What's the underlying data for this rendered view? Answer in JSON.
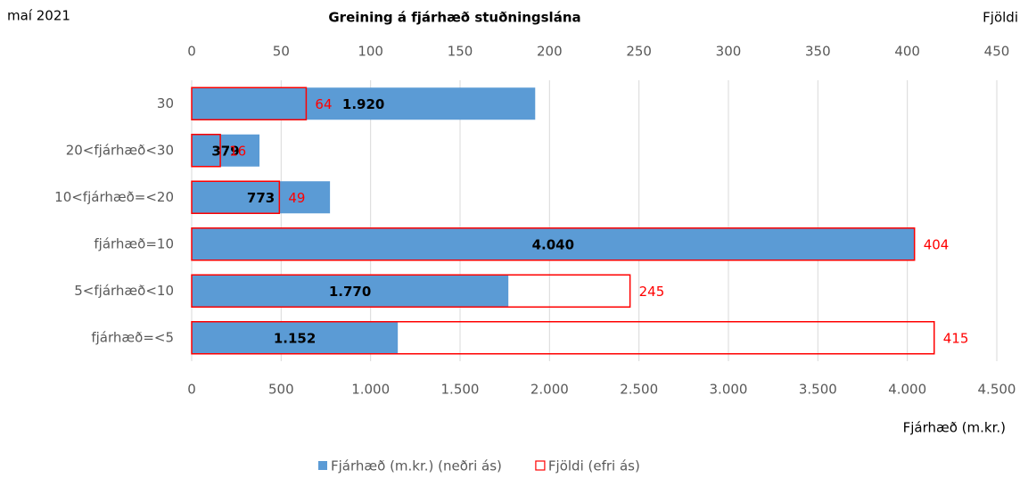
{
  "chart_data": {
    "type": "hbar",
    "title": "Greining á fjárhæð stuðningslána",
    "annotation": "maí 2021",
    "xlabel": "Fjárhæð (m.kr.)",
    "x2label": "Fjöldi",
    "categories": [
      "30",
      "20<fjárhæð<30",
      "10<fjárhæð=<20",
      "fjárhæð=10",
      "5<fjárhæð<10",
      "fjárhæð=<5"
    ],
    "series": [
      {
        "name": "Fjárhæð (m.kr.) (neðri ás)",
        "color": "#5b9bd5",
        "style": "filled",
        "axis": "x",
        "values": [
          1920,
          379,
          773,
          4040,
          1770,
          1152
        ],
        "value_labels": [
          "1.920",
          "379",
          "773",
          "4.040",
          "1.770",
          "1.152"
        ]
      },
      {
        "name": "Fjöldi (efri ás)",
        "color": "#ff0000",
        "style": "outline",
        "axis": "x2",
        "values": [
          64,
          16,
          49,
          404,
          245,
          415
        ]
      }
    ],
    "xlim": [
      0,
      4500
    ],
    "xticks": [
      0,
      500,
      {
        "value": 1000,
        "label": "1.000"
      },
      {
        "value": 1500,
        "label": "1.500"
      },
      {
        "value": 2000,
        "label": "2.000"
      },
      {
        "value": 2500,
        "label": "2.500"
      },
      {
        "value": 3000,
        "label": "3.000"
      },
      {
        "value": 3500,
        "label": "3.500"
      },
      {
        "value": 4000,
        "label": "4.000"
      },
      {
        "value": 4500,
        "label": "4.500"
      }
    ],
    "x2lim": [
      0,
      450
    ],
    "x2ticks": [
      0,
      50,
      100,
      150,
      200,
      250,
      300,
      350,
      400,
      450
    ],
    "grid": true
  }
}
